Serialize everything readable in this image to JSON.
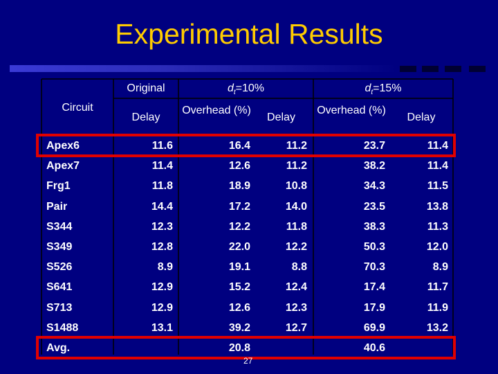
{
  "slide": {
    "title": "Experimental Results",
    "page_number": "27",
    "colors": {
      "background": "#000080",
      "title": "#ffcc00",
      "highlight": "#e00000",
      "grid": "#000000"
    }
  },
  "table": {
    "headers": {
      "circuit": "Circuit",
      "original": "Original",
      "original_delay": "Delay",
      "group1": "dt=10%",
      "group2": "dt=15%",
      "overhead": "Overhead (%)",
      "delay": "Delay"
    },
    "rows": [
      {
        "circuit": "Apex6",
        "orig": "11.6",
        "oh10": "16.4",
        "d10": "11.2",
        "oh15": "23.7",
        "d15": "11.4"
      },
      {
        "circuit": "Apex7",
        "orig": "11.4",
        "oh10": "12.6",
        "d10": "11.2",
        "oh15": "38.2",
        "d15": "11.4"
      },
      {
        "circuit": "Frg1",
        "orig": "11.8",
        "oh10": "18.9",
        "d10": "10.8",
        "oh15": "34.3",
        "d15": "11.5"
      },
      {
        "circuit": "Pair",
        "orig": "14.4",
        "oh10": "17.2",
        "d10": "14.0",
        "oh15": "23.5",
        "d15": "13.8"
      },
      {
        "circuit": "S344",
        "orig": "12.3",
        "oh10": "12.2",
        "d10": "11.8",
        "oh15": "38.3",
        "d15": "11.3"
      },
      {
        "circuit": "S349",
        "orig": "12.8",
        "oh10": "22.0",
        "d10": "12.2",
        "oh15": "50.3",
        "d15": "12.0"
      },
      {
        "circuit": "S526",
        "orig": "8.9",
        "oh10": "19.1",
        "d10": "8.8",
        "oh15": "70.3",
        "d15": "8.9"
      },
      {
        "circuit": "S641",
        "orig": "12.9",
        "oh10": "15.2",
        "d10": "12.4",
        "oh15": "17.4",
        "d15": "11.7"
      },
      {
        "circuit": "S713",
        "orig": "12.9",
        "oh10": "12.6",
        "d10": "12.3",
        "oh15": "17.9",
        "d15": "11.9"
      },
      {
        "circuit": "S1488",
        "orig": "13.1",
        "oh10": "39.2",
        "d10": "12.7",
        "oh15": "69.9",
        "d15": "13.2"
      },
      {
        "circuit": "Avg.",
        "orig": "",
        "oh10": "20.8",
        "d10": "",
        "oh15": "40.6",
        "d15": ""
      }
    ]
  }
}
